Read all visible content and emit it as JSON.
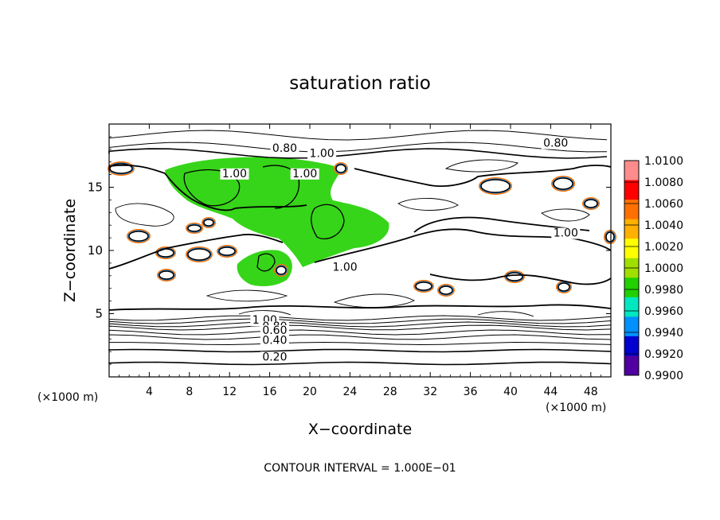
{
  "chart_data": {
    "type": "heatmap",
    "title": "saturation ratio",
    "xlabel": "X−coordinate",
    "ylabel": "Z−coordinate",
    "x_unit_left": "(×1000 m)",
    "x_unit_right": "(×1000 m)",
    "footer": "CONTOUR INTERVAL = 1.000E−01",
    "xlim": [
      0,
      50
    ],
    "ylim": [
      0,
      20
    ],
    "x_ticks": [
      4,
      8,
      12,
      16,
      20,
      24,
      28,
      32,
      36,
      40,
      44,
      48
    ],
    "y_ticks": [
      5,
      10,
      15
    ],
    "contour_interval": 0.1,
    "colorbar": {
      "labels": [
        "1.0100",
        "1.0080",
        "1.0060",
        "1.0040",
        "1.0020",
        "1.0000",
        "0.9980",
        "0.9960",
        "0.9940",
        "0.9920",
        "0.9900"
      ],
      "colors": [
        "#ff8c8c",
        "#ff0000",
        "#ff7000",
        "#ffb000",
        "#ffff00",
        "#a0e000",
        "#20d000",
        "#00e8c0",
        "#0090ff",
        "#0000d0",
        "#5000a0"
      ]
    },
    "contour_labels": [
      {
        "text": "0.80",
        "x": 17.5,
        "y": 17.8
      },
      {
        "text": "1.00",
        "x": 21.2,
        "y": 17.4
      },
      {
        "text": "0.80",
        "x": 44.5,
        "y": 18.2
      },
      {
        "text": "1.00",
        "x": 12.5,
        "y": 15.8
      },
      {
        "text": "1.00",
        "x": 19.5,
        "y": 15.8
      },
      {
        "text": "1.00",
        "x": 45.5,
        "y": 11.1
      },
      {
        "text": "1.00",
        "x": 23.5,
        "y": 8.4
      },
      {
        "text": "1.00",
        "x": 15.5,
        "y": 4.2
      },
      {
        "text": "0.80",
        "x": 16.5,
        "y": 3.7
      },
      {
        "text": "0.60",
        "x": 16.5,
        "y": 3.4
      },
      {
        "text": "0.40",
        "x": 16.5,
        "y": 2.6
      },
      {
        "text": "0.20",
        "x": 16.5,
        "y": 1.3
      }
    ]
  }
}
